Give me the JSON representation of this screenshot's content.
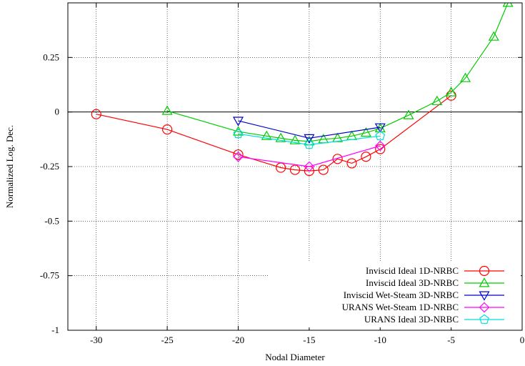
{
  "chart_data": {
    "type": "line",
    "title": "",
    "xlabel": "Nodal Diameter",
    "ylabel": "Normalized Log. Dec.",
    "xlim": [
      -32,
      0
    ],
    "ylim": [
      -1,
      0.5
    ],
    "xticks": [
      -30,
      -25,
      -20,
      -15,
      -10,
      -5,
      0
    ],
    "xtick_labels": [
      "-30",
      "-25",
      "-20",
      "-15",
      "-10",
      "-5",
      "0"
    ],
    "yticks": [
      -1,
      -0.75,
      -0.5,
      -0.25,
      0,
      0.25
    ],
    "ytick_labels": [
      "-1",
      "-0.75",
      "-0.5",
      "-0.25",
      "0",
      "0.25"
    ],
    "grid": true,
    "zero_line": true,
    "legend_position": "bottom-right",
    "series": [
      {
        "name": "Inviscid Ideal 1D-NRBC",
        "color": "#ff0000",
        "marker": "circle",
        "x": [
          -30,
          -25,
          -20,
          -17,
          -16,
          -15,
          -14,
          -13,
          -12,
          -11,
          -10,
          -5
        ],
        "y": [
          -0.01,
          -0.08,
          -0.195,
          -0.255,
          -0.265,
          -0.27,
          -0.265,
          -0.215,
          -0.235,
          -0.205,
          -0.17,
          0.075
        ]
      },
      {
        "name": "Inviscid Ideal 3D-NRBC",
        "color": "#00cc00",
        "marker": "triangle-up",
        "x": [
          -25,
          -20,
          -18,
          -17,
          -16,
          -15,
          -14,
          -13,
          -12,
          -11,
          -10,
          -8,
          -6,
          -5,
          -4,
          -2,
          -1
        ],
        "y": [
          0.005,
          -0.09,
          -0.11,
          -0.12,
          -0.13,
          -0.135,
          -0.125,
          -0.12,
          -0.11,
          -0.095,
          -0.075,
          -0.015,
          0.05,
          0.09,
          0.155,
          0.345,
          0.5
        ]
      },
      {
        "name": "Inviscid Wet-Steam 3D-NRBC",
        "color": "#0000cc",
        "marker": "triangle-down",
        "x": [
          -20,
          -15,
          -10
        ],
        "y": [
          -0.04,
          -0.12,
          -0.07
        ]
      },
      {
        "name": "URANS Wet-Steam  1D-NRBC",
        "color": "#ff00ff",
        "marker": "diamond",
        "x": [
          -20,
          -15,
          -10
        ],
        "y": [
          -0.205,
          -0.25,
          -0.155
        ]
      },
      {
        "name": "URANS Ideal 3D-NRBC",
        "color": "#00dddd",
        "marker": "pentagon",
        "x": [
          -20,
          -15,
          -10
        ],
        "y": [
          -0.1,
          -0.15,
          -0.11
        ]
      }
    ]
  }
}
